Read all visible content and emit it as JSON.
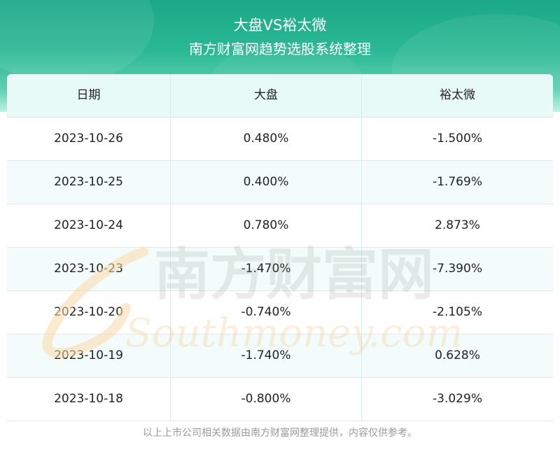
{
  "header": {
    "title": "大盘VS裕太微",
    "subtitle": "南方财富网趋势选股系统整理"
  },
  "table": {
    "columns": [
      "日期",
      "大盘",
      "裕太微"
    ],
    "rows": [
      [
        "2023-10-26",
        "0.480%",
        "-1.500%"
      ],
      [
        "2023-10-25",
        "0.400%",
        "-1.769%"
      ],
      [
        "2023-10-24",
        "0.780%",
        "2.873%"
      ],
      [
        "2023-10-23",
        "-1.470%",
        "-7.390%"
      ],
      [
        "2023-10-20",
        "-0.740%",
        "-2.105%"
      ],
      [
        "2023-10-19",
        "-1.740%",
        "0.628%"
      ],
      [
        "2023-10-18",
        "-0.800%",
        "-3.029%"
      ]
    ]
  },
  "watermark": {
    "cn": "南方财富网",
    "en": "Southmoney.com"
  },
  "footer": {
    "note": "以上上市公司相关数据由南方财富网整理提供，内容仅供参考。"
  },
  "colors": {
    "header_green": "#1aa886",
    "header_row_bg": "#e8faf7",
    "alt_row_bg": "#f3fcfa",
    "border": "#d5eee9",
    "footer_text": "#9a9a9a"
  }
}
